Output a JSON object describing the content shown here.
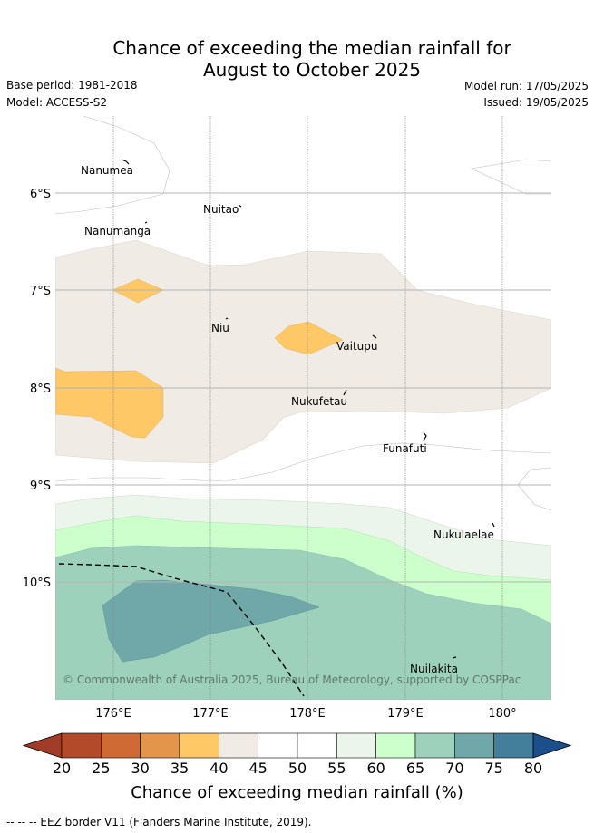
{
  "title": {
    "line1": "Chance of exceeding the median rainfall for",
    "line2": "August to October 2025"
  },
  "meta": {
    "base_period": "Base period: 1981-2018",
    "model": "Model: ACCESS-S2",
    "model_run": "Model run: 17/05/2025",
    "issued": "Issued: 19/05/2025"
  },
  "axes": {
    "y_ticks": [
      "6°S",
      "7°S",
      "8°S",
      "9°S",
      "10°S"
    ],
    "x_ticks": [
      "176°E",
      "177°E",
      "178°E",
      "179°E",
      "180°"
    ]
  },
  "places": [
    "Nanumea",
    "Nuitao",
    "Nanumanga",
    "Niu",
    "Vaitupu",
    "Nukufetau",
    "Funafuti",
    "Nukulaelae",
    "Nuilakita"
  ],
  "copyright": "© Commonwealth of Australia 2025, Bureau of Meteorology, supported by COSPPac",
  "colorbar": {
    "ticks": [
      "20",
      "25",
      "30",
      "35",
      "40",
      "45",
      "50",
      "55",
      "60",
      "65",
      "70",
      "75",
      "80"
    ],
    "colors": [
      "#b34a29",
      "#cf6a35",
      "#e3954b",
      "#fdc865",
      "#f0ebe5",
      "#ffffff",
      "#ffffff",
      "#ebf5eb",
      "#ccffcc",
      "#9dd1bb",
      "#70a8aa",
      "#437f9b"
    ],
    "under_color": "#a13c26",
    "over_color": "#1a4f8a",
    "title": "Chance of exceeding median rainfall (%)"
  },
  "legend": "-- -- -- EEZ border V11 (Flanders Marine Institute, 2019)."
}
